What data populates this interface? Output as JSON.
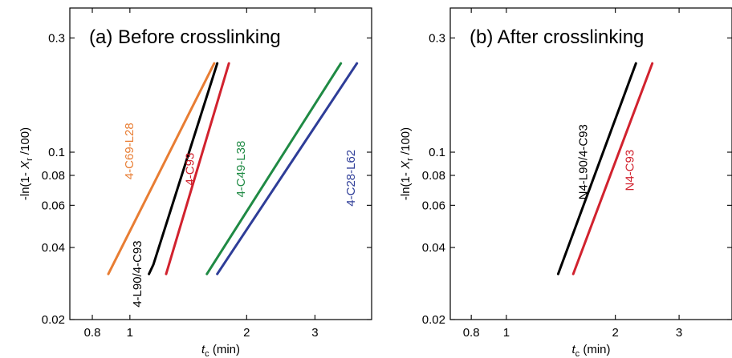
{
  "chart_data": [
    {
      "type": "line",
      "title": "(a) Before crosslinking",
      "xlabel": "t_c (min)",
      "ylabel": "-ln(1- X_r /100)",
      "x_scale": "log",
      "y_scale": "log",
      "xlim": [
        0.7,
        4.2
      ],
      "ylim": [
        0.02,
        0.4
      ],
      "x_ticks": [
        0.8,
        1,
        2,
        3
      ],
      "y_ticks": [
        0.02,
        0.04,
        0.06,
        0.08,
        0.1,
        0.3
      ],
      "x_tick_labels": [
        "0.8",
        "1",
        "2",
        "3"
      ],
      "y_tick_labels": [
        "0.02",
        "0.04",
        "0.06",
        "0.08",
        "0.1",
        "0.3"
      ],
      "series": [
        {
          "name": "4-C69-L28",
          "color": "#e87d33",
          "x": [
            0.88,
            1.65
          ],
          "y": [
            0.031,
            0.235
          ],
          "label_at": [
            1.02,
            0.101
          ]
        },
        {
          "name": "4-L90/4-C93",
          "color": "#000000",
          "x": [
            1.12,
            1.15,
            1.68
          ],
          "y": [
            0.031,
            0.034,
            0.235
          ],
          "label_at": [
            1.07,
            0.031
          ]
        },
        {
          "name": "4-C93",
          "color": "#d1222e",
          "x": [
            1.24,
            1.8
          ],
          "y": [
            0.031,
            0.235
          ],
          "label_at": [
            1.46,
            0.085
          ]
        },
        {
          "name": "4-C49-L38",
          "color": "#1f8a44",
          "x": [
            1.58,
            3.5
          ],
          "y": [
            0.031,
            0.235
          ],
          "label_at": [
            1.98,
            0.085
          ]
        },
        {
          "name": "4-C28-L62",
          "color": "#2e3d98",
          "x": [
            1.68,
            3.85
          ],
          "y": [
            0.031,
            0.235
          ],
          "label_at": [
            3.8,
            0.078
          ]
        }
      ]
    },
    {
      "type": "line",
      "title": "(b) After crosslinking",
      "xlabel": "t_c (min)",
      "ylabel": "-ln(1- X_r /100)",
      "x_scale": "log",
      "y_scale": "log",
      "xlim": [
        0.7,
        4.2
      ],
      "ylim": [
        0.02,
        0.4
      ],
      "x_ticks": [
        0.8,
        1,
        2,
        3
      ],
      "y_ticks": [
        0.02,
        0.04,
        0.06,
        0.08,
        0.1,
        0.3
      ],
      "x_tick_labels": [
        "0.8",
        "1",
        "2",
        "3"
      ],
      "y_tick_labels": [
        "0.02",
        "0.04",
        "0.06",
        "0.08",
        "0.1",
        "0.3"
      ],
      "series": [
        {
          "name": "N4-L90/4-C93",
          "color": "#000000",
          "x": [
            1.39,
            2.28
          ],
          "y": [
            0.031,
            0.235
          ],
          "label_at": [
            1.67,
            0.091
          ]
        },
        {
          "name": "N4-C93",
          "color": "#d1222e",
          "x": [
            1.53,
            2.53
          ],
          "y": [
            0.031,
            0.235
          ],
          "label_at": [
            2.25,
            0.084
          ]
        }
      ]
    }
  ]
}
